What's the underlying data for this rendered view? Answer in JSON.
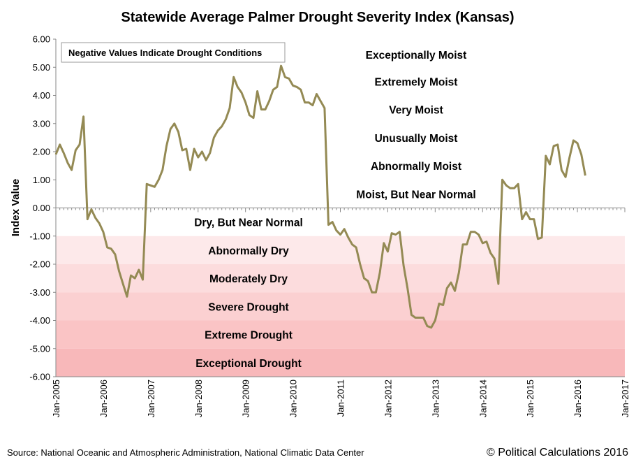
{
  "chart_data": {
    "type": "line",
    "title": "Statewide Average Palmer Drought Severity Index (Kansas)",
    "ylabel": "Index Value",
    "xlabel": "",
    "ylim": [
      -6,
      6
    ],
    "xlim": [
      "Jan-2005",
      "Jan-2017"
    ],
    "grid": false,
    "legend": "none",
    "line_color": "#948a54",
    "annotation": "Negative Values Indicate Drought Conditions",
    "yticks": [
      "6.00",
      "5.00",
      "4.00",
      "3.00",
      "2.00",
      "1.00",
      "0.00",
      "-1.00",
      "-2.00",
      "-3.00",
      "-4.00",
      "-5.00",
      "-6.00"
    ],
    "xticks": [
      "Jan-2005",
      "Jan-2006",
      "Jan-2007",
      "Jan-2008",
      "Jan-2009",
      "Jan-2010",
      "Jan-2011",
      "Jan-2012",
      "Jan-2013",
      "Jan-2014",
      "Jan-2015",
      "Jan-2016",
      "Jan-2017"
    ],
    "band_labels_moist": [
      {
        "label": "Exceptionally Moist",
        "y": 5.45
      },
      {
        "label": "Extremely Moist",
        "y": 4.5
      },
      {
        "label": "Very Moist",
        "y": 3.5
      },
      {
        "label": "Unusually Moist",
        "y": 2.5
      },
      {
        "label": "Abnormally Moist",
        "y": 1.5
      },
      {
        "label": "Moist, But Near Normal",
        "y": 0.5
      }
    ],
    "band_labels_dry": [
      {
        "label": "Dry, But Near Normal",
        "y": -0.5
      },
      {
        "label": "Abnormally Dry",
        "y": -1.5
      },
      {
        "label": "Moderately Dry",
        "y": -2.5
      },
      {
        "label": "Severe Drought",
        "y": -3.5
      },
      {
        "label": "Extreme Drought",
        "y": -4.5
      },
      {
        "label": "Exceptional Drought",
        "y": -5.5
      }
    ],
    "dry_band_colors": [
      "#fde9ea",
      "#fcdcdd",
      "#fbd0d1",
      "#fac4c5",
      "#f8b8ba"
    ],
    "series": [
      {
        "x": [
          "2005-01",
          "2005-02",
          "2005-03",
          "2005-04",
          "2005-05",
          "2005-06",
          "2005-07",
          "2005-08",
          "2005-09",
          "2005-10",
          "2005-11",
          "2005-12",
          "2006-01",
          "2006-02",
          "2006-03",
          "2006-04",
          "2006-05",
          "2006-06",
          "2006-07",
          "2006-08",
          "2006-09",
          "2006-10",
          "2006-11",
          "2006-12",
          "2007-01",
          "2007-02",
          "2007-03",
          "2007-04",
          "2007-05",
          "2007-06",
          "2007-07",
          "2007-08",
          "2007-09",
          "2007-10",
          "2007-11",
          "2007-12",
          "2008-01",
          "2008-02",
          "2008-03",
          "2008-04",
          "2008-05",
          "2008-06",
          "2008-07",
          "2008-08",
          "2008-09",
          "2008-10",
          "2008-11",
          "2008-12",
          "2009-01",
          "2009-02",
          "2009-03",
          "2009-04",
          "2009-05",
          "2009-06",
          "2009-07",
          "2009-08",
          "2009-09",
          "2009-10",
          "2009-11",
          "2009-12",
          "2010-01",
          "2010-02",
          "2010-03",
          "2010-04",
          "2010-05",
          "2010-06",
          "2010-07",
          "2010-08",
          "2010-09",
          "2010-10",
          "2010-11",
          "2010-12",
          "2011-01",
          "2011-02",
          "2011-03",
          "2011-04",
          "2011-05",
          "2011-06",
          "2011-07",
          "2011-08",
          "2011-09",
          "2011-10",
          "2011-11",
          "2011-12",
          "2012-01",
          "2012-02",
          "2012-03",
          "2012-04",
          "2012-05",
          "2012-06",
          "2012-07",
          "2012-08",
          "2012-09",
          "2012-10",
          "2012-11",
          "2012-12",
          "2013-01",
          "2013-02",
          "2013-03",
          "2013-04",
          "2013-05",
          "2013-06",
          "2013-07",
          "2013-08",
          "2013-09",
          "2013-10",
          "2013-11",
          "2013-12",
          "2014-01",
          "2014-02",
          "2014-03",
          "2014-04",
          "2014-05",
          "2014-06",
          "2014-07",
          "2014-08",
          "2014-09",
          "2014-10",
          "2014-11",
          "2014-12",
          "2015-01",
          "2015-02",
          "2015-03",
          "2015-04",
          "2015-05",
          "2015-06",
          "2015-07",
          "2015-08",
          "2015-09",
          "2015-10",
          "2015-11",
          "2015-12",
          "2016-01",
          "2016-02",
          "2016-03"
        ],
        "y": [
          1.9,
          2.25,
          1.95,
          1.6,
          1.35,
          2.05,
          2.25,
          3.25,
          -0.4,
          -0.05,
          -0.35,
          -0.55,
          -0.85,
          -1.4,
          -1.45,
          -1.65,
          -2.25,
          -2.7,
          -3.15,
          -2.4,
          -2.5,
          -2.2,
          -2.55,
          0.85,
          0.8,
          0.75,
          1.0,
          1.35,
          2.2,
          2.8,
          3.0,
          2.7,
          2.05,
          2.1,
          1.35,
          2.1,
          1.8,
          2.0,
          1.7,
          1.95,
          2.5,
          2.75,
          2.9,
          3.15,
          3.55,
          4.65,
          4.3,
          4.1,
          3.75,
          3.3,
          3.2,
          4.15,
          3.5,
          3.5,
          3.8,
          4.2,
          4.3,
          5.05,
          4.65,
          4.6,
          4.35,
          4.3,
          4.2,
          3.75,
          3.75,
          3.65,
          4.05,
          3.8,
          3.55,
          -0.6,
          -0.5,
          -0.8,
          -0.95,
          -0.75,
          -1.05,
          -1.3,
          -1.4,
          -2.0,
          -2.5,
          -2.6,
          -3.0,
          -3.0,
          -2.3,
          -1.25,
          -1.55,
          -0.9,
          -0.95,
          -0.85,
          -2.05,
          -2.85,
          -3.8,
          -3.9,
          -3.9,
          -3.9,
          -4.2,
          -4.25,
          -4.0,
          -3.4,
          -3.45,
          -2.85,
          -2.65,
          -2.95,
          -2.3,
          -1.3,
          -1.3,
          -0.85,
          -0.85,
          -0.95,
          -1.25,
          -1.2,
          -1.6,
          -1.8,
          -2.7,
          1.0,
          0.8,
          0.7,
          0.7,
          0.85,
          -0.4,
          -0.15,
          -0.4,
          -0.4,
          -1.1,
          -1.05,
          1.85,
          1.55,
          2.2,
          2.25,
          1.35,
          1.1,
          1.8,
          2.4,
          2.3,
          1.9,
          1.15
        ]
      }
    ]
  },
  "footer": {
    "source": "Source: National Oceanic and Atmospheric Administration,  National Climatic Data Center",
    "copyright": "© Political Calculations 2016"
  }
}
